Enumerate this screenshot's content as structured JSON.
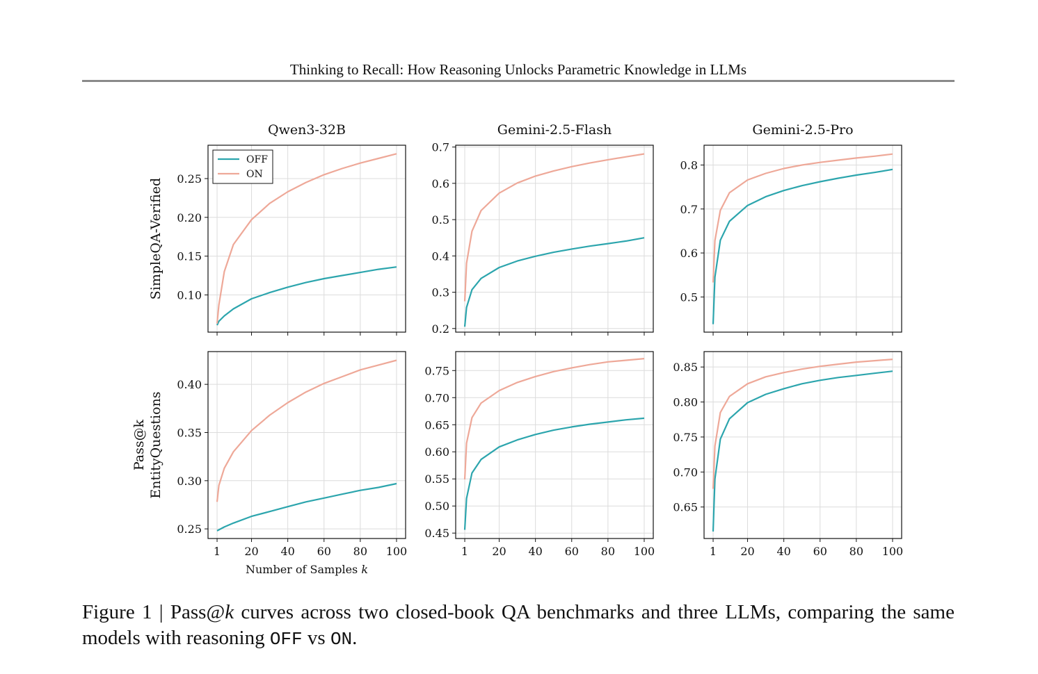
{
  "running_head": "Thinking to Recall: How Reasoning Unlocks Parametric Knowledge in LLMs",
  "caption": {
    "label": "Figure 1 | Pass@",
    "k": "k",
    "text_1": " curves across two closed-book QA benchmarks and three LLMs, comparing the same models with reasoning ",
    "off": "OFF",
    "vs": " vs ",
    "on": "ON",
    "end": "."
  },
  "chart_data": {
    "type": "line",
    "columns": [
      "Qwen3-32B",
      "Gemini-2.5-Flash",
      "Gemini-2.5-Pro"
    ],
    "row_labels": [
      [
        "SimpleQA-Verified"
      ],
      [
        "Pass@k",
        "EntityQuestions"
      ]
    ],
    "xlabel": {
      "prefix": "Number of Samples ",
      "var": "k"
    },
    "x_ticks": [
      1,
      20,
      40,
      60,
      80,
      100
    ],
    "xlim": [
      -4,
      105
    ],
    "legend": {
      "placement": "top-left",
      "entries": [
        "OFF",
        "ON"
      ]
    },
    "colors": {
      "OFF": "#2ca5ad",
      "ON": "#eea898"
    },
    "grid": true,
    "panels": [
      {
        "row": 0,
        "col": 0,
        "ylim": [
          0.052,
          0.293
        ],
        "yticks": [
          0.1,
          0.15,
          0.2,
          0.25
        ],
        "decimals": 2,
        "series": [
          {
            "name": "OFF",
            "x": [
              1,
              2,
              5,
              10,
              20,
              30,
              40,
              50,
              60,
              70,
              80,
              90,
              100
            ],
            "y": [
              0.061,
              0.066,
              0.073,
              0.082,
              0.095,
              0.103,
              0.11,
              0.116,
              0.121,
              0.125,
              0.129,
              0.133,
              0.136
            ]
          },
          {
            "name": "ON",
            "x": [
              1,
              2,
              5,
              10,
              20,
              30,
              40,
              50,
              60,
              70,
              80,
              90,
              100
            ],
            "y": [
              0.063,
              0.087,
              0.13,
              0.165,
              0.197,
              0.218,
              0.233,
              0.245,
              0.255,
              0.263,
              0.27,
              0.276,
              0.282
            ]
          }
        ]
      },
      {
        "row": 0,
        "col": 1,
        "ylim": [
          0.19,
          0.705
        ],
        "yticks": [
          0.2,
          0.3,
          0.4,
          0.5,
          0.6,
          0.7
        ],
        "decimals": 1,
        "series": [
          {
            "name": "OFF",
            "x": [
              1,
              2,
              5,
              10,
              20,
              30,
              40,
              50,
              60,
              70,
              80,
              90,
              100
            ],
            "y": [
              0.205,
              0.258,
              0.307,
              0.338,
              0.368,
              0.386,
              0.399,
              0.41,
              0.419,
              0.427,
              0.434,
              0.441,
              0.45
            ]
          },
          {
            "name": "ON",
            "x": [
              1,
              2,
              5,
              10,
              20,
              30,
              40,
              50,
              60,
              70,
              80,
              90,
              100
            ],
            "y": [
              0.275,
              0.38,
              0.468,
              0.525,
              0.573,
              0.601,
              0.62,
              0.634,
              0.646,
              0.656,
              0.665,
              0.673,
              0.681
            ]
          }
        ]
      },
      {
        "row": 0,
        "col": 2,
        "ylim": [
          0.42,
          0.845
        ],
        "yticks": [
          0.5,
          0.6,
          0.7,
          0.8
        ],
        "decimals": 1,
        "series": [
          {
            "name": "OFF",
            "x": [
              1,
              2,
              5,
              10,
              20,
              30,
              40,
              50,
              60,
              70,
              80,
              90,
              100
            ],
            "y": [
              0.438,
              0.545,
              0.629,
              0.672,
              0.708,
              0.728,
              0.742,
              0.753,
              0.762,
              0.77,
              0.777,
              0.783,
              0.79
            ]
          },
          {
            "name": "ON",
            "x": [
              1,
              2,
              5,
              10,
              20,
              30,
              40,
              50,
              60,
              70,
              80,
              90,
              100
            ],
            "y": [
              0.533,
              0.628,
              0.697,
              0.737,
              0.766,
              0.781,
              0.792,
              0.8,
              0.806,
              0.811,
              0.816,
              0.82,
              0.825
            ]
          }
        ]
      },
      {
        "row": 1,
        "col": 0,
        "ylim": [
          0.24,
          0.434
        ],
        "yticks": [
          0.25,
          0.3,
          0.35,
          0.4
        ],
        "decimals": 2,
        "series": [
          {
            "name": "OFF",
            "x": [
              1,
              2,
              5,
              10,
              20,
              30,
              40,
              50,
              60,
              70,
              80,
              90,
              100
            ],
            "y": [
              0.248,
              0.249,
              0.252,
              0.256,
              0.263,
              0.268,
              0.273,
              0.278,
              0.282,
              0.286,
              0.29,
              0.293,
              0.297
            ]
          },
          {
            "name": "ON",
            "x": [
              1,
              2,
              5,
              10,
              20,
              30,
              40,
              50,
              60,
              70,
              80,
              90,
              100
            ],
            "y": [
              0.278,
              0.295,
              0.313,
              0.33,
              0.352,
              0.368,
              0.381,
              0.392,
              0.401,
              0.408,
              0.415,
              0.42,
              0.425
            ]
          }
        ]
      },
      {
        "row": 1,
        "col": 1,
        "ylim": [
          0.44,
          0.785
        ],
        "yticks": [
          0.45,
          0.5,
          0.55,
          0.6,
          0.65,
          0.7,
          0.75
        ],
        "decimals": 2,
        "series": [
          {
            "name": "OFF",
            "x": [
              1,
              2,
              5,
              10,
              20,
              30,
              40,
              50,
              60,
              70,
              80,
              90,
              100
            ],
            "y": [
              0.456,
              0.514,
              0.561,
              0.586,
              0.609,
              0.622,
              0.632,
              0.64,
              0.646,
              0.651,
              0.655,
              0.659,
              0.662
            ]
          },
          {
            "name": "ON",
            "x": [
              1,
              2,
              5,
              10,
              20,
              30,
              40,
              50,
              60,
              70,
              80,
              90,
              100
            ],
            "y": [
              0.549,
              0.616,
              0.663,
              0.69,
              0.713,
              0.728,
              0.739,
              0.748,
              0.755,
              0.761,
              0.766,
              0.769,
              0.772
            ]
          }
        ]
      },
      {
        "row": 1,
        "col": 2,
        "ylim": [
          0.605,
          0.872
        ],
        "yticks": [
          0.65,
          0.7,
          0.75,
          0.8,
          0.85
        ],
        "decimals": 2,
        "series": [
          {
            "name": "OFF",
            "x": [
              1,
              2,
              5,
              10,
              20,
              30,
              40,
              50,
              60,
              70,
              80,
              90,
              100
            ],
            "y": [
              0.615,
              0.69,
              0.747,
              0.776,
              0.799,
              0.811,
              0.819,
              0.826,
              0.831,
              0.835,
              0.838,
              0.841,
              0.844
            ]
          },
          {
            "name": "ON",
            "x": [
              1,
              2,
              5,
              10,
              20,
              30,
              40,
              50,
              60,
              70,
              80,
              90,
              100
            ],
            "y": [
              0.676,
              0.737,
              0.785,
              0.808,
              0.826,
              0.836,
              0.842,
              0.847,
              0.851,
              0.854,
              0.857,
              0.859,
              0.861
            ]
          }
        ]
      }
    ]
  }
}
